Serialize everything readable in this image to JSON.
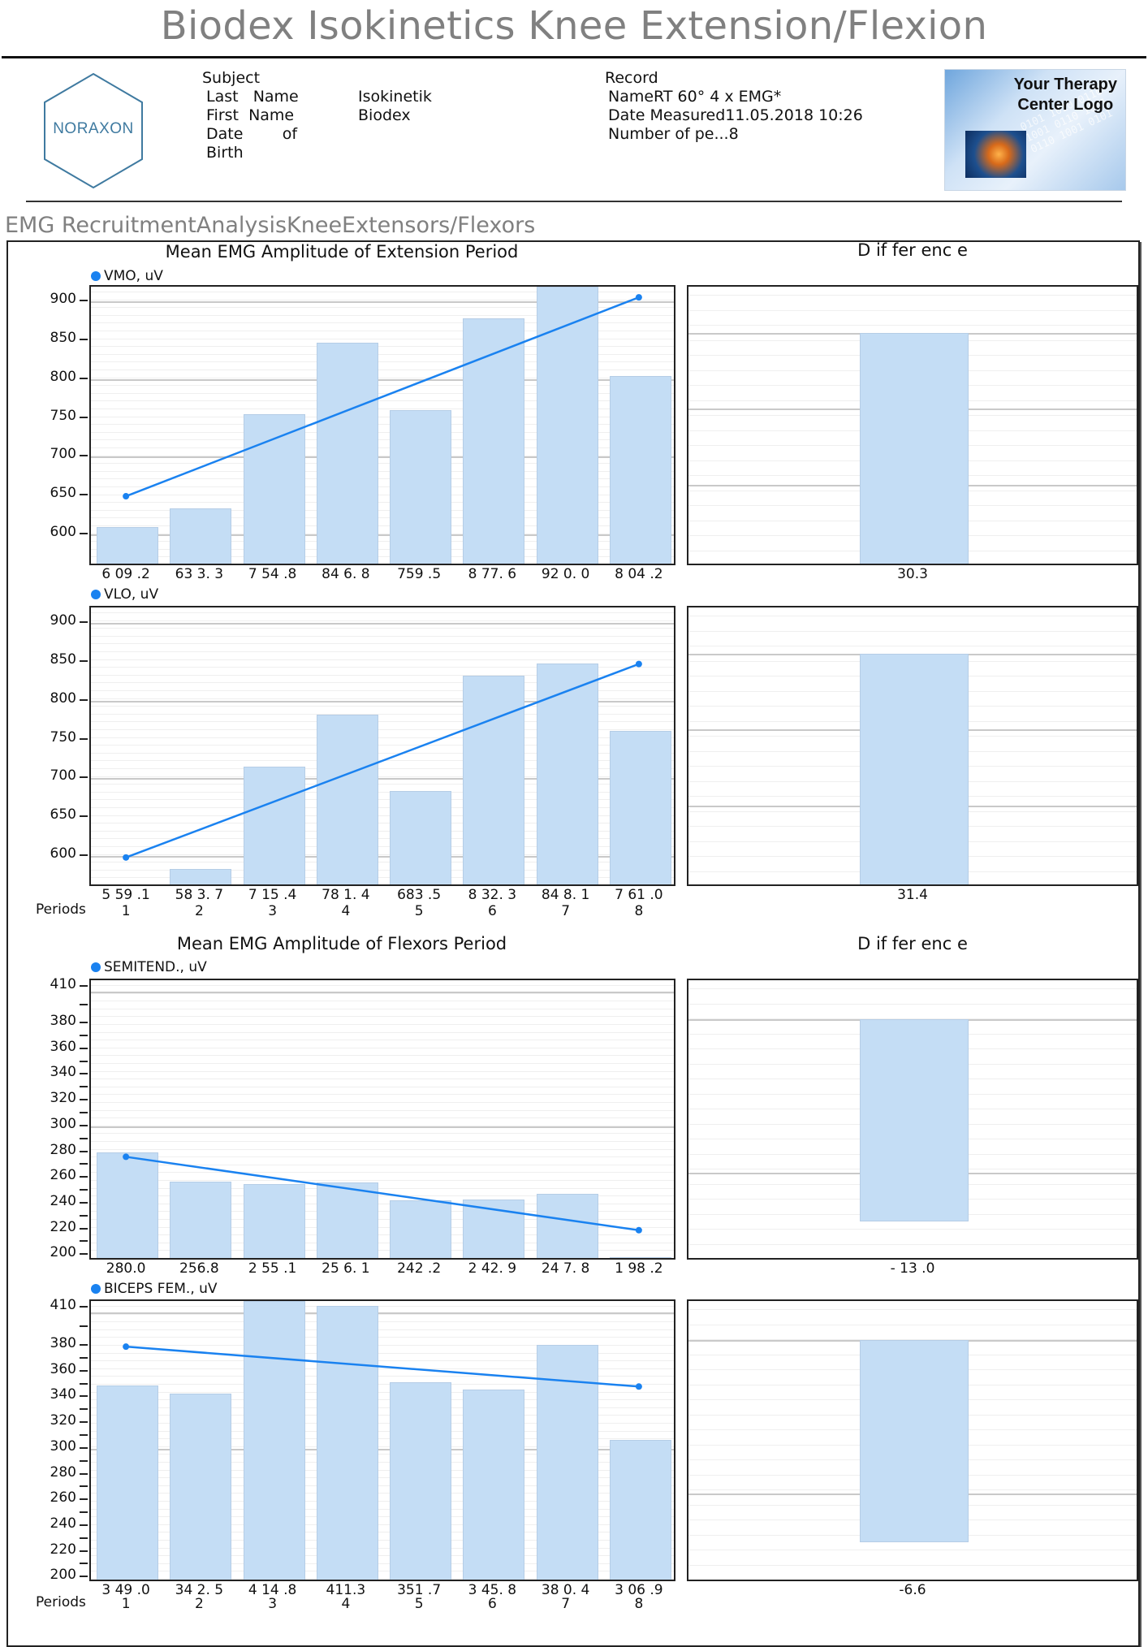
{
  "page": {
    "title": "Biodex Isokinetics Knee Extension/Flexion",
    "section_title": "EMG RecruitmentAnalysisKneeExtensors/Flexors"
  },
  "header": {
    "logo_text": "NORAXON",
    "subject": {
      "heading": "Subject",
      "last_name_label": "Last   Name",
      "last_name_value": "Isokinetik",
      "first_name_label": "First  Name",
      "first_name_value": "Biodex",
      "dob_label_1": "Date        of",
      "dob_label_2": "Birth"
    },
    "record": {
      "heading": "Record",
      "name_line": "NameRT 60° 4 x EMG*",
      "date_line": "Date Measured11.05.2018 10:26",
      "periods_line": "Number of pe...8"
    },
    "therapy_logo": {
      "line1": "Your Therapy",
      "line2": "Center Logo"
    }
  },
  "colors": {
    "bar_fill": "#c4ddf5",
    "bar_border": "#b5cde6",
    "trend_line": "#1a82f0",
    "title_gray": "#808080"
  },
  "groups": {
    "extension": {
      "title": "Mean EMG Amplitude of Extension Period",
      "diff_title": "D if fer enc e"
    },
    "flexion": {
      "title": "Mean EMG Amplitude of Flexors Period",
      "diff_title": "D if fer enc e"
    }
  },
  "periods_label": "Periods",
  "chart_data": [
    {
      "type": "bar",
      "title": "Mean EMG Amplitude of Extension Period",
      "series_name": "VMO, uV",
      "categories": [
        "1",
        "2",
        "3",
        "4",
        "5",
        "6",
        "7",
        "8"
      ],
      "value_labels": [
        "6 09 .2",
        "63 3. 3",
        "7 54 .8",
        "84 6. 8",
        "759 .5",
        "8 77. 6",
        "92 0. 0",
        "8 04 .2"
      ],
      "values": [
        609.2,
        633.3,
        754.8,
        846.8,
        759.5,
        877.6,
        920.0,
        804.2
      ],
      "trend": {
        "start": 647,
        "end": 903
      },
      "yticks": [
        "900",
        "850",
        "800",
        "750",
        "700",
        "650",
        "600"
      ],
      "ylim": [
        558,
        920
      ],
      "difference": {
        "label": "30.3",
        "value": 30.3
      }
    },
    {
      "type": "bar",
      "title": "Mean EMG Amplitude of Extension Period",
      "series_name": "VLO, uV",
      "categories": [
        "1",
        "2",
        "3",
        "4",
        "5",
        "6",
        "7",
        "8"
      ],
      "value_labels": [
        "5 59 .1",
        "58 3. 7",
        "7 15 .4",
        "78 1. 4",
        "683 .5",
        "8 32. 3",
        "84 8. 1",
        "7 61 .0"
      ],
      "values": [
        559.1,
        583.7,
        715.4,
        781.4,
        683.5,
        832.3,
        848.1,
        761.0
      ],
      "trend": {
        "start": 596,
        "end": 845
      },
      "yticks": [
        "900",
        "850",
        "800",
        "750",
        "700",
        "650",
        "600"
      ],
      "ylim": [
        558,
        920
      ],
      "difference": {
        "label": "31.4",
        "value": 31.4
      }
    },
    {
      "type": "bar",
      "title": "Mean EMG Amplitude of Flexors Period",
      "series_name": "SEMITEND., uV",
      "categories": [
        "1",
        "2",
        "3",
        "4",
        "5",
        "6",
        "7",
        "8"
      ],
      "value_labels": [
        "280.0",
        "256.8",
        "2 55 .1",
        "25 6. 1",
        "242 .2",
        "2 42. 9",
        "24 7. 8",
        "1 98 .2"
      ],
      "values": [
        280.0,
        256.8,
        255.1,
        256.1,
        242.2,
        242.9,
        247.8,
        198.2
      ],
      "trend": {
        "start": 275,
        "end": 218
      },
      "yticks": [
        "410",
        "380",
        "360",
        "340",
        "320",
        "300",
        "280",
        "260",
        "240",
        "220",
        "200"
      ],
      "ylim": [
        195,
        415
      ],
      "difference": {
        "label": "- 13 .0",
        "value": -13.0
      }
    },
    {
      "type": "bar",
      "title": "Mean EMG Amplitude of Flexors Period",
      "series_name": "BICEPS FEM., uV",
      "categories": [
        "1",
        "2",
        "3",
        "4",
        "5",
        "6",
        "7",
        "8"
      ],
      "value_labels": [
        "3 49 .0",
        "34 2. 5",
        "4 14 .8",
        "411.3",
        "351 .7",
        "3 45. 8",
        "38 0. 4",
        "3 06 .9"
      ],
      "values": [
        349.0,
        342.5,
        414.8,
        411.3,
        351.7,
        345.8,
        380.4,
        306.9
      ],
      "trend": {
        "start": 378,
        "end": 347
      },
      "yticks": [
        "410",
        "380",
        "360",
        "340",
        "320",
        "300",
        "280",
        "260",
        "240",
        "220",
        "200"
      ],
      "ylim": [
        195,
        415
      ],
      "difference": {
        "label": "-6.6",
        "value": -6.6
      }
    }
  ]
}
